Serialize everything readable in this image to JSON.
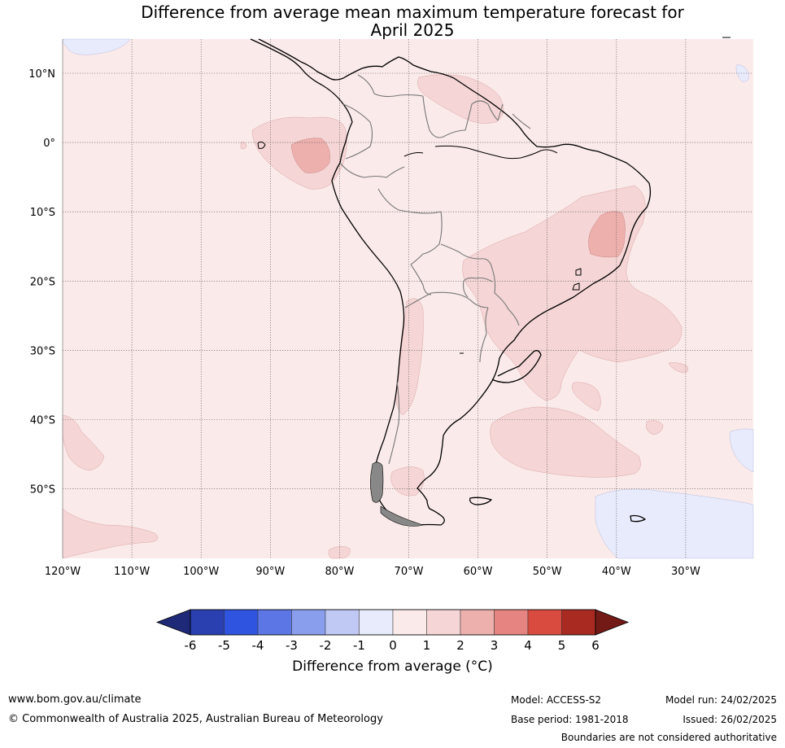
{
  "title": {
    "line1": "Difference from average mean maximum temperature forecast for",
    "line2": "April 2025"
  },
  "axes": {
    "lat_labels": [
      "10°N",
      "0°",
      "10°S",
      "20°S",
      "30°S",
      "40°S",
      "50°S"
    ],
    "lon_labels": [
      "120°W",
      "110°W",
      "100°W",
      "90°W",
      "80°W",
      "70°W",
      "60°W",
      "50°W",
      "40°W",
      "30°W"
    ]
  },
  "colorbar": {
    "ticks": [
      "-6",
      "-5",
      "-4",
      "-3",
      "-2",
      "-1",
      "0",
      "1",
      "2",
      "3",
      "4",
      "5",
      "6"
    ],
    "colors": [
      "#2a3fb0",
      "#2f55e0",
      "#5c76e6",
      "#8a9eee",
      "#c0c8f4",
      "#e8ebfb",
      "#fbeaea",
      "#f5d5d5",
      "#edb0ad",
      "#e58480",
      "#da4b3f",
      "#a92a20"
    ],
    "low_end_color": "#1e2a78",
    "high_end_color": "#741a16",
    "title": "Difference from average (°C)"
  },
  "map_colors": {
    "background": "#fbeaea",
    "light_warm": "#f5d5d5",
    "moderate_warm": "#edb0ad",
    "cool": "#e8ebfb"
  },
  "footer": {
    "website": "www.bom.gov.au/climate",
    "copyright": "© Commonwealth of Australia 2025, Australian Bureau of Meteorology",
    "model": "Model: ACCESS-S2",
    "base_period": "Base period: 1981-2018",
    "model_run": "Model run: 24/02/2025",
    "issued": "Issued: 26/02/2025",
    "disclaimer": "Boundaries are not considered authoritative"
  }
}
